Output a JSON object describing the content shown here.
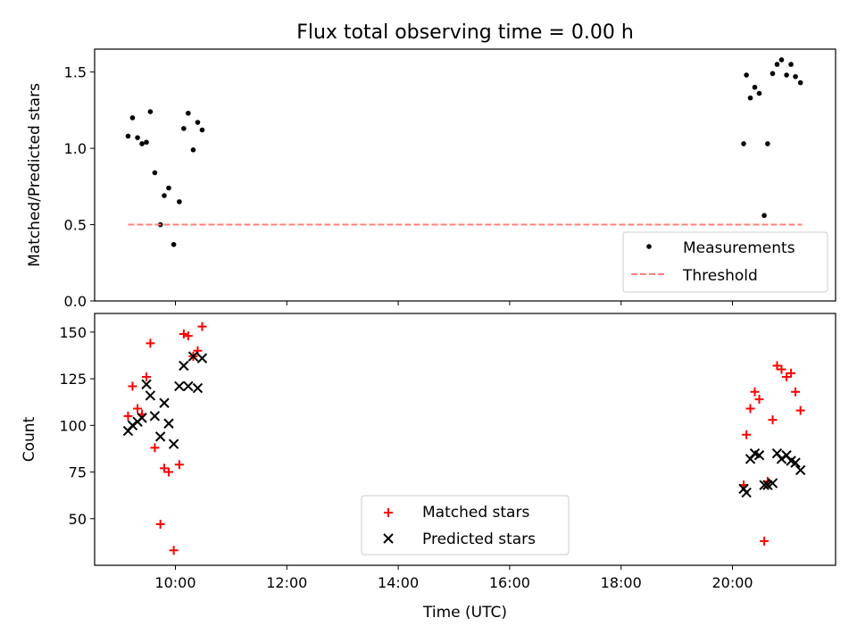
{
  "title": "Flux total observing time = 0.00 h",
  "xlabel": "Time (UTC)",
  "x_tick_labels": [
    "10:00",
    "12:00",
    "14:00",
    "16:00",
    "18:00",
    "20:00"
  ],
  "colors": {
    "measurement": "#000000",
    "threshold": "#ff7f7f",
    "matched": "#ff0000",
    "predicted": "#000000"
  },
  "chart_data": [
    {
      "type": "scatter",
      "ylabel": "Matched/Predicted stars",
      "xlim": [
        8.55,
        21.85
      ],
      "ylim": [
        0.0,
        1.65
      ],
      "y_ticks": [
        0.0,
        0.5,
        1.0,
        1.5
      ],
      "y_tick_labels": [
        "0.0",
        "0.5",
        "1.0",
        "1.5"
      ],
      "legend_position": "lower-right",
      "series": [
        {
          "name": "Measurements",
          "marker": "dot",
          "x": [
            9.15,
            9.23,
            9.32,
            9.4,
            9.48,
            9.55,
            9.63,
            9.73,
            9.8,
            9.88,
            9.97,
            10.07,
            10.15,
            10.23,
            10.32,
            10.4,
            10.48,
            20.2,
            20.25,
            20.32,
            20.4,
            20.48,
            20.57,
            20.63,
            20.72,
            20.8,
            20.88,
            20.97,
            21.05,
            21.13,
            21.22
          ],
          "y": [
            1.08,
            1.2,
            1.07,
            1.03,
            1.04,
            1.24,
            0.84,
            0.5,
            0.69,
            0.74,
            0.37,
            0.65,
            1.13,
            1.23,
            0.99,
            1.17,
            1.12,
            1.03,
            1.48,
            1.33,
            1.4,
            1.36,
            0.56,
            1.03,
            1.49,
            1.55,
            1.58,
            1.48,
            1.55,
            1.47,
            1.43
          ]
        },
        {
          "name": "Threshold",
          "style": "dashed",
          "x": [
            9.15,
            21.25
          ],
          "y": [
            0.5,
            0.5
          ]
        }
      ]
    },
    {
      "type": "scatter",
      "ylabel": "Count",
      "xlim": [
        8.55,
        21.85
      ],
      "ylim": [
        25,
        160
      ],
      "y_ticks": [
        50,
        75,
        100,
        125,
        150
      ],
      "y_tick_labels": [
        "50",
        "75",
        "100",
        "125",
        "150"
      ],
      "legend_position": "lower-center",
      "series": [
        {
          "name": "Matched stars",
          "marker": "plus",
          "x": [
            9.15,
            9.23,
            9.32,
            9.4,
            9.48,
            9.55,
            9.63,
            9.73,
            9.8,
            9.88,
            9.97,
            10.07,
            10.15,
            10.23,
            10.32,
            10.4,
            10.48,
            20.2,
            20.25,
            20.32,
            20.4,
            20.48,
            20.57,
            20.63,
            20.72,
            20.8,
            20.88,
            20.97,
            21.05,
            21.13,
            21.22
          ],
          "y": [
            105,
            121,
            109,
            106,
            126,
            144,
            88,
            47,
            77,
            75,
            33,
            79,
            149,
            148,
            137,
            140,
            153,
            68,
            95,
            109,
            118,
            114,
            38,
            70,
            103,
            132,
            130,
            126,
            128,
            118,
            108
          ]
        },
        {
          "name": "Predicted stars",
          "marker": "x",
          "x": [
            9.15,
            9.23,
            9.32,
            9.4,
            9.48,
            9.55,
            9.63,
            9.73,
            9.8,
            9.88,
            9.97,
            10.07,
            10.15,
            10.23,
            10.32,
            10.4,
            10.48,
            20.2,
            20.25,
            20.32,
            20.4,
            20.48,
            20.57,
            20.63,
            20.72,
            20.8,
            20.88,
            20.97,
            21.05,
            21.13,
            21.22
          ],
          "y": [
            97,
            100,
            102,
            104,
            122,
            116,
            105,
            94,
            112,
            101,
            90,
            121,
            132,
            121,
            137,
            120,
            136,
            66,
            64,
            82,
            85,
            84,
            68,
            68,
            69,
            85,
            82,
            84,
            81,
            80,
            76
          ]
        }
      ]
    }
  ]
}
